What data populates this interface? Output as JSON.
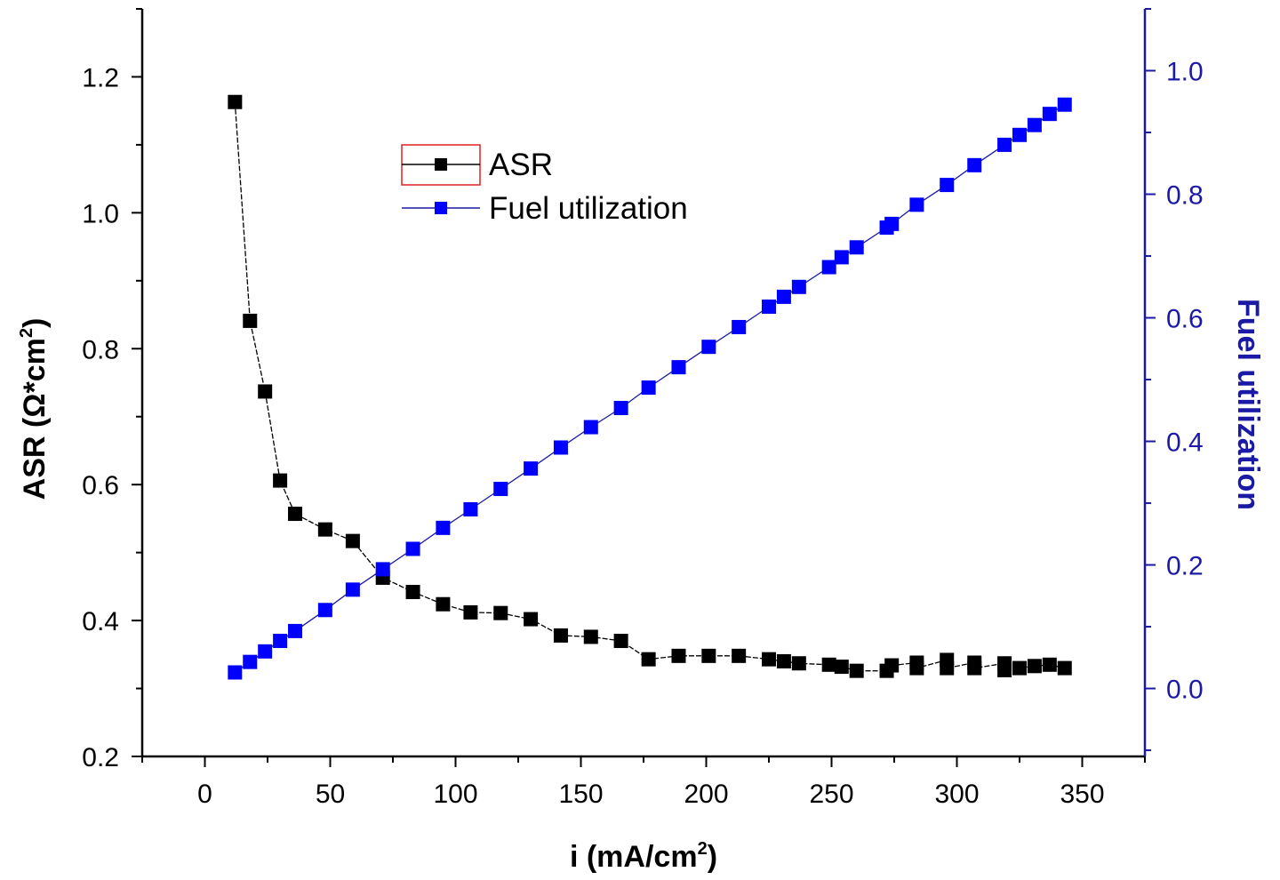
{
  "chart_data": {
    "type": "scatter",
    "title": "",
    "x_axis": {
      "label": "i (mA/cm",
      "label_sup": "2",
      "label_close": ")",
      "range": [
        -25,
        375
      ],
      "ticks": [
        0,
        50,
        100,
        150,
        200,
        250,
        300,
        350
      ],
      "tick_labels": [
        "0",
        "50",
        "100",
        "150",
        "200",
        "250",
        "300",
        "350"
      ]
    },
    "y_axis_left": {
      "label": "ASR (Ω*cm",
      "label_sup": "2",
      "label_close": ")",
      "range": [
        0.2,
        1.3
      ],
      "ticks": [
        0.2,
        0.4,
        0.6,
        0.8,
        1.0,
        1.2
      ],
      "tick_labels": [
        "0.2",
        "0.4",
        "0.6",
        "0.8",
        "1.0",
        "1.2"
      ],
      "color": "#000000"
    },
    "y_axis_right": {
      "label": "Fuel utilization",
      "range": [
        -0.11,
        1.1
      ],
      "ticks": [
        0.0,
        0.2,
        0.4,
        0.6,
        0.8,
        1.0
      ],
      "tick_labels": [
        "0.0",
        "0.2",
        "0.4",
        "0.6",
        "0.8",
        "1.0"
      ],
      "color": "#1a1aa6"
    },
    "legend_position": "upper-left",
    "series": [
      {
        "name": "ASR",
        "axis": "left",
        "color": "#000000",
        "line_color": "#000000",
        "marker": "square",
        "x": [
          12,
          18,
          24,
          30,
          36,
          48,
          59,
          71,
          83,
          95,
          106,
          118,
          130,
          142,
          154,
          166,
          177,
          189,
          201,
          213,
          225,
          231,
          237,
          249,
          254,
          260,
          272,
          274,
          284,
          284,
          296,
          296,
          307,
          307,
          319,
          319,
          325,
          331,
          337,
          343
        ],
        "y": [
          1.163,
          0.841,
          0.737,
          0.606,
          0.557,
          0.534,
          0.517,
          0.463,
          0.442,
          0.424,
          0.412,
          0.411,
          0.402,
          0.378,
          0.376,
          0.37,
          0.343,
          0.348,
          0.348,
          0.348,
          0.343,
          0.34,
          0.337,
          0.335,
          0.332,
          0.326,
          0.326,
          0.334,
          0.338,
          0.33,
          0.342,
          0.33,
          0.338,
          0.33,
          0.337,
          0.327,
          0.33,
          0.333,
          0.335,
          0.33
        ]
      },
      {
        "name": "Fuel utilization",
        "axis": "right",
        "color": "#0000ff",
        "line_color": "#1a1aa6",
        "marker": "square",
        "x": [
          12,
          18,
          24,
          30,
          36,
          48,
          59,
          71,
          83,
          95,
          106,
          118,
          130,
          142,
          154,
          166,
          177,
          189,
          201,
          213,
          225,
          231,
          237,
          249,
          254,
          260,
          272,
          274,
          284,
          296,
          307,
          319,
          325,
          331,
          337,
          343
        ],
        "y": [
          0.026,
          0.043,
          0.06,
          0.077,
          0.093,
          0.127,
          0.16,
          0.193,
          0.226,
          0.26,
          0.29,
          0.323,
          0.356,
          0.39,
          0.423,
          0.454,
          0.487,
          0.52,
          0.553,
          0.585,
          0.618,
          0.634,
          0.65,
          0.682,
          0.698,
          0.714,
          0.746,
          0.752,
          0.783,
          0.815,
          0.847,
          0.88,
          0.896,
          0.912,
          0.93,
          0.945
        ]
      }
    ]
  }
}
